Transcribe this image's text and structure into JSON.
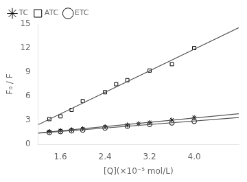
{
  "chart_data": {
    "type": "scatter",
    "xlabel": "[Q](×10⁻⁵ mol/L)",
    "ylabel": "F₀ / F",
    "xlim": [
      1.2,
      4.8
    ],
    "ylim": [
      0,
      15
    ],
    "xticks": [
      1.6,
      2.4,
      3.2,
      {
        "value": 4,
        "label": "4.0"
      }
    ],
    "yticks": [
      0,
      3,
      6,
      9,
      12,
      15
    ],
    "grid": false,
    "legend": "upper left",
    "series": [
      {
        "type": "line",
        "color": "#555555",
        "x": [
          1.2,
          4.8
        ],
        "values": [
          2.4582,
          14.5392
        ]
      },
      {
        "type": "line",
        "color": "#555555",
        "x": [
          1.2,
          4.8
        ],
        "values": [
          1.4237,
          3.8166
        ]
      },
      {
        "type": "line",
        "color": "#555555",
        "x": [
          1.2,
          4.8
        ],
        "values": [
          1.3876,
          3.338
        ]
      },
      {
        "name": "TC",
        "type": "scatter",
        "marker": "star",
        "color": "#000000",
        "x": [
          1.4,
          1.6,
          1.8,
          2.0,
          2.4,
          2.8,
          3.0,
          3.2,
          3.6,
          4.0
        ],
        "values": [
          1.6,
          1.72,
          1.82,
          1.95,
          2.2,
          2.42,
          2.58,
          2.72,
          3.05,
          3.35
        ]
      },
      {
        "name": "ATC",
        "type": "scatter",
        "marker": "square",
        "color": "#000000",
        "x": [
          1.4,
          1.6,
          1.8,
          2.0,
          2.4,
          2.6,
          2.8,
          3.2,
          3.6,
          4.0
        ],
        "values": [
          3.15,
          3.5,
          4.3,
          5.4,
          6.5,
          7.5,
          8.0,
          9.2,
          10.0,
          12.0
        ]
      },
      {
        "name": "ETC",
        "type": "scatter",
        "marker": "circle",
        "color": "#000000",
        "x": [
          1.4,
          1.6,
          1.8,
          2.0,
          2.4,
          2.8,
          3.2,
          3.6,
          4.0
        ],
        "values": [
          1.5,
          1.6,
          1.7,
          1.8,
          2.05,
          2.28,
          2.5,
          2.68,
          2.88
        ]
      }
    ]
  }
}
